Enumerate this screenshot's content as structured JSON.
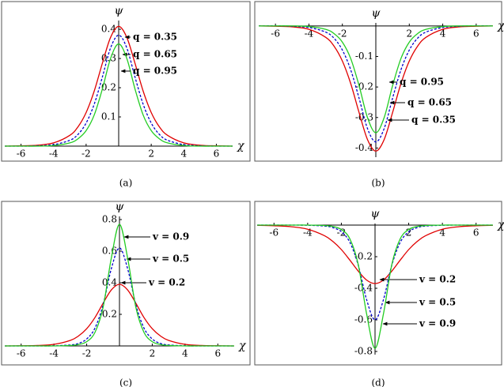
{
  "chart_data": [
    {
      "type": "line",
      "caption": "(a)",
      "x_label": "χ",
      "y_label": "ψ",
      "x": [
        -7,
        -6,
        -5,
        -4,
        -3,
        -2.5,
        -2,
        -1.5,
        -1,
        -0.5,
        0,
        0.5,
        1,
        1.5,
        2,
        2.5,
        3,
        4,
        5,
        6,
        7
      ],
      "xlim": [
        -7,
        7
      ],
      "xticks": [
        -6,
        -4,
        -2,
        2,
        4,
        6
      ],
      "ylim": [
        0,
        0.43
      ],
      "yticks": [
        0.1,
        0.2,
        0.3,
        0.4
      ],
      "series": [
        {
          "name": "q = 0.35",
          "color": "#e00000",
          "dashed": false,
          "values": [
            0,
            0.001,
            0.003,
            0.011,
            0.037,
            0.066,
            0.115,
            0.189,
            0.284,
            0.372,
            0.41,
            0.372,
            0.284,
            0.189,
            0.115,
            0.066,
            0.037,
            0.011,
            0.003,
            0.001,
            0
          ]
        },
        {
          "name": "q = 0.65",
          "color": "#0000cc",
          "dashed": true,
          "values": [
            0,
            0,
            0.001,
            0.005,
            0.02,
            0.04,
            0.079,
            0.144,
            0.237,
            0.336,
            0.38,
            0.336,
            0.237,
            0.144,
            0.079,
            0.04,
            0.02,
            0.005,
            0.001,
            0,
            0
          ]
        },
        {
          "name": "q = 0.95",
          "color": "#22cc22",
          "dashed": false,
          "values": [
            0,
            0,
            0,
            0.002,
            0.011,
            0.025,
            0.053,
            0.107,
            0.196,
            0.3,
            0.35,
            0.3,
            0.196,
            0.107,
            0.053,
            0.025,
            0.011,
            0.002,
            0,
            0,
            0
          ]
        }
      ]
    },
    {
      "type": "line",
      "caption": "(b)",
      "x_label": "χ",
      "y_label": "ψ",
      "x": [
        -7,
        -6,
        -5,
        -4,
        -3,
        -2.5,
        -2,
        -1.5,
        -1,
        -0.5,
        0,
        0.5,
        1,
        1.5,
        2,
        2.5,
        3,
        4,
        5,
        6,
        7
      ],
      "xlim": [
        -7,
        7
      ],
      "xticks": [
        -6,
        -4,
        -2,
        2,
        4,
        6
      ],
      "ylim": [
        -0.43,
        0.01
      ],
      "yticks": [
        -0.1,
        -0.2,
        -0.3,
        -0.4
      ],
      "series": [
        {
          "name": "q = 0.35",
          "color": "#e00000",
          "dashed": false,
          "values": [
            0,
            -0.001,
            -0.003,
            -0.011,
            -0.037,
            -0.066,
            -0.115,
            -0.189,
            -0.284,
            -0.372,
            -0.41,
            -0.372,
            -0.284,
            -0.189,
            -0.115,
            -0.066,
            -0.037,
            -0.011,
            -0.003,
            -0.001,
            0
          ]
        },
        {
          "name": "q = 0.65",
          "color": "#0000cc",
          "dashed": true,
          "values": [
            0,
            0,
            -0.001,
            -0.005,
            -0.02,
            -0.04,
            -0.079,
            -0.144,
            -0.237,
            -0.336,
            -0.38,
            -0.336,
            -0.237,
            -0.144,
            -0.079,
            -0.04,
            -0.02,
            -0.005,
            -0.001,
            0,
            0
          ]
        },
        {
          "name": "q = 0.95",
          "color": "#22cc22",
          "dashed": false,
          "values": [
            0,
            0,
            0,
            -0.002,
            -0.011,
            -0.025,
            -0.053,
            -0.107,
            -0.196,
            -0.3,
            -0.35,
            -0.3,
            -0.196,
            -0.107,
            -0.053,
            -0.025,
            -0.011,
            -0.002,
            0,
            0,
            0
          ]
        }
      ]
    },
    {
      "type": "line",
      "caption": "(c)",
      "x_label": "χ",
      "y_label": "ψ",
      "x": [
        -7,
        -6,
        -5,
        -4,
        -3,
        -2.5,
        -2,
        -1.5,
        -1,
        -0.5,
        0,
        0.5,
        1,
        1.5,
        2,
        2.5,
        3,
        4,
        5,
        6,
        7
      ],
      "xlim": [
        -7,
        7
      ],
      "xticks": [
        -6,
        -4,
        -2,
        2,
        4,
        6
      ],
      "ylim": [
        0,
        0.82
      ],
      "yticks": [
        0.2,
        0.4,
        0.6,
        0.8
      ],
      "series": [
        {
          "name": "v = 0.2",
          "color": "#e00000",
          "dashed": false,
          "values": [
            0,
            0.001,
            0.003,
            0.01,
            0.035,
            0.063,
            0.109,
            0.179,
            0.27,
            0.354,
            0.39,
            0.354,
            0.27,
            0.179,
            0.109,
            0.063,
            0.035,
            0.01,
            0.003,
            0.001,
            0
          ]
        },
        {
          "name": "v = 0.5",
          "color": "#0000cc",
          "dashed": true,
          "values": [
            0,
            0,
            0,
            0.001,
            0.006,
            0.016,
            0.044,
            0.112,
            0.26,
            0.488,
            0.62,
            0.488,
            0.26,
            0.112,
            0.044,
            0.016,
            0.006,
            0.001,
            0,
            0,
            0
          ]
        },
        {
          "name": "v = 0.9",
          "color": "#22cc22",
          "dashed": false,
          "values": [
            0,
            0,
            0,
            0,
            0.003,
            0.009,
            0.027,
            0.085,
            0.244,
            0.555,
            0.77,
            0.555,
            0.244,
            0.085,
            0.027,
            0.009,
            0.003,
            0,
            0,
            0,
            0
          ]
        }
      ]
    },
    {
      "type": "line",
      "caption": "(d)",
      "x_label": "χ",
      "y_label": "ψ",
      "x": [
        -7,
        -6,
        -5,
        -4,
        -3,
        -2.5,
        -2,
        -1.5,
        -1,
        -0.5,
        0,
        0.5,
        1,
        1.5,
        2,
        2.5,
        3,
        4,
        5,
        6,
        7
      ],
      "xlim": [
        -7,
        7
      ],
      "xticks": [
        -6,
        -4,
        -2,
        2,
        4,
        6
      ],
      "ylim": [
        -0.82,
        0.01
      ],
      "yticks": [
        -0.2,
        -0.4,
        -0.6,
        -0.8
      ],
      "series": [
        {
          "name": "v = 0.2",
          "color": "#e00000",
          "dashed": false,
          "values": [
            -0.001,
            -0.004,
            -0.01,
            -0.026,
            -0.067,
            -0.104,
            -0.155,
            -0.221,
            -0.291,
            -0.348,
            -0.37,
            -0.348,
            -0.291,
            -0.221,
            -0.155,
            -0.104,
            -0.067,
            -0.026,
            -0.01,
            -0.004,
            -0.001
          ]
        },
        {
          "name": "v = 0.5",
          "color": "#0000cc",
          "dashed": true,
          "values": [
            0,
            0,
            0,
            -0.001,
            -0.006,
            -0.016,
            -0.042,
            -0.108,
            -0.252,
            -0.472,
            -0.6,
            -0.472,
            -0.252,
            -0.108,
            -0.042,
            -0.016,
            -0.006,
            -0.001,
            0,
            0,
            0
          ]
        },
        {
          "name": "v = 0.9",
          "color": "#22cc22",
          "dashed": false,
          "values": [
            0,
            0,
            0,
            0,
            -0.003,
            -0.009,
            -0.028,
            -0.086,
            -0.248,
            -0.562,
            -0.78,
            -0.562,
            -0.248,
            -0.086,
            -0.028,
            -0.009,
            -0.003,
            0,
            0,
            0,
            0
          ]
        }
      ]
    }
  ]
}
